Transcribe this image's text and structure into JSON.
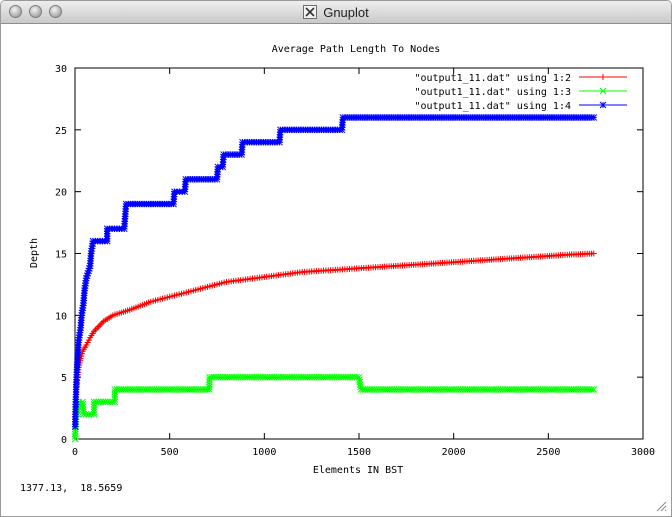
{
  "window": {
    "title": "Gnuplot",
    "status_coords": "1377.13,  18.5659"
  },
  "colors": {
    "series1": "#ff0000",
    "series2": "#00ff00",
    "series3": "#0000ff"
  },
  "chart_data": {
    "type": "line",
    "title": "Average Path Length To Nodes",
    "xlabel": "Elements IN BST",
    "ylabel": "Depth",
    "xlim": [
      0,
      3000
    ],
    "ylim": [
      0,
      30
    ],
    "xticks": [
      0,
      500,
      1000,
      1500,
      2000,
      2500,
      3000
    ],
    "yticks": [
      0,
      5,
      10,
      15,
      20,
      25,
      30
    ],
    "grid": false,
    "legend_position": "top-right",
    "series": [
      {
        "name": "\"output1_11.dat\" using 1:2",
        "color": "#ff0000",
        "marker": "+",
        "points": [
          [
            1,
            1
          ],
          [
            2,
            2
          ],
          [
            4,
            3
          ],
          [
            6,
            3.8
          ],
          [
            10,
            4.5
          ],
          [
            15,
            5.2
          ],
          [
            20,
            5.8
          ],
          [
            30,
            6.5
          ],
          [
            40,
            7.1
          ],
          [
            60,
            7.6
          ],
          [
            80,
            8.2
          ],
          [
            100,
            8.7
          ],
          [
            150,
            9.5
          ],
          [
            200,
            10
          ],
          [
            300,
            10.5
          ],
          [
            400,
            11.1
          ],
          [
            500,
            11.5
          ],
          [
            600,
            11.9
          ],
          [
            700,
            12.3
          ],
          [
            800,
            12.7
          ],
          [
            900,
            12.9
          ],
          [
            1000,
            13.1
          ],
          [
            1100,
            13.3
          ],
          [
            1200,
            13.5
          ],
          [
            1300,
            13.6
          ],
          [
            1400,
            13.7
          ],
          [
            1500,
            13.8
          ],
          [
            1600,
            13.9
          ],
          [
            1800,
            14.1
          ],
          [
            2000,
            14.3
          ],
          [
            2200,
            14.5
          ],
          [
            2400,
            14.7
          ],
          [
            2600,
            14.9
          ],
          [
            2740,
            15
          ]
        ]
      },
      {
        "name": "\"output1_11.dat\" using 1:3",
        "color": "#00ff00",
        "marker": "x",
        "points": [
          [
            1,
            0
          ],
          [
            2,
            1
          ],
          [
            4,
            1
          ],
          [
            6,
            2
          ],
          [
            15,
            2
          ],
          [
            20,
            3
          ],
          [
            40,
            3
          ],
          [
            45,
            2
          ],
          [
            100,
            2
          ],
          [
            100,
            3
          ],
          [
            210,
            3
          ],
          [
            210,
            4
          ],
          [
            710,
            4
          ],
          [
            710,
            5
          ],
          [
            1500,
            5
          ],
          [
            1510,
            4
          ],
          [
            2740,
            4
          ]
        ]
      },
      {
        "name": "\"output1_11.dat\" using 1:4",
        "color": "#0000ff",
        "marker": "*",
        "points": [
          [
            1,
            1
          ],
          [
            2,
            2
          ],
          [
            4,
            3
          ],
          [
            6,
            4
          ],
          [
            8,
            5
          ],
          [
            12,
            6
          ],
          [
            15,
            7
          ],
          [
            20,
            8
          ],
          [
            30,
            9
          ],
          [
            35,
            10
          ],
          [
            45,
            11
          ],
          [
            50,
            12
          ],
          [
            60,
            13
          ],
          [
            80,
            14
          ],
          [
            85,
            15
          ],
          [
            95,
            16
          ],
          [
            170,
            16
          ],
          [
            170,
            17
          ],
          [
            260,
            17
          ],
          [
            265,
            18
          ],
          [
            270,
            19
          ],
          [
            520,
            19
          ],
          [
            525,
            20
          ],
          [
            580,
            20
          ],
          [
            585,
            21
          ],
          [
            750,
            21
          ],
          [
            755,
            22
          ],
          [
            780,
            22
          ],
          [
            785,
            23
          ],
          [
            880,
            23
          ],
          [
            885,
            24
          ],
          [
            1080,
            24
          ],
          [
            1085,
            25
          ],
          [
            1410,
            25
          ],
          [
            1415,
            26
          ],
          [
            2740,
            26
          ]
        ]
      }
    ]
  }
}
